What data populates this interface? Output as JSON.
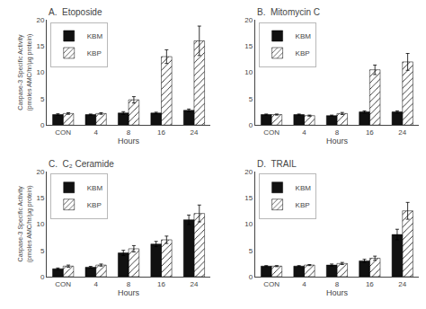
{
  "chart_data": [
    {
      "type": "bar",
      "title": "A.  Etoposide",
      "xlabel": "Hours",
      "ylabel": "Caspase-3 Specific Activity\n(pmoles AMC/hr/μg protein)",
      "categories": [
        "CON",
        "4",
        "8",
        "16",
        "24"
      ],
      "series": [
        {
          "name": "KBM",
          "color": "#111111",
          "values": [
            2.0,
            2.0,
            2.3,
            2.3,
            2.8
          ],
          "errors": [
            0.15,
            0.1,
            0.25,
            0.15,
            0.25
          ]
        },
        {
          "name": "KBP",
          "color": "#bbbbbb",
          "values": [
            2.2,
            2.2,
            4.8,
            13.0,
            16.0
          ],
          "errors": [
            0.15,
            0.15,
            0.6,
            1.3,
            2.8
          ]
        }
      ],
      "ylim": [
        0,
        20
      ],
      "yticks": [
        0,
        5,
        10,
        15,
        20
      ],
      "grid": false,
      "legend": "upper left"
    },
    {
      "type": "bar",
      "title": "B.  Mitomycin C",
      "xlabel": "Hours",
      "categories": [
        "CON",
        "4",
        "8",
        "16",
        "24"
      ],
      "series": [
        {
          "name": "KBM",
          "color": "#111111",
          "values": [
            2.0,
            2.0,
            1.8,
            2.5,
            2.5
          ],
          "errors": [
            0.1,
            0.1,
            0.1,
            0.2,
            0.2
          ]
        },
        {
          "name": "KBP",
          "color": "#bbbbbb",
          "values": [
            2.0,
            1.8,
            2.2,
            10.5,
            12.0
          ],
          "errors": [
            0.1,
            0.1,
            0.2,
            0.9,
            1.6
          ]
        }
      ],
      "ylim": [
        0,
        20
      ],
      "yticks": [
        0,
        5,
        10,
        15,
        20
      ],
      "grid": false,
      "legend": "upper left"
    },
    {
      "type": "bar",
      "title": "C.  C₂ Ceramide",
      "xlabel": "Hours",
      "ylabel": "Caspase-3 Specific Activity\n(pmoles AMC/hr/μg protein)",
      "categories": [
        "CON",
        "4",
        "8",
        "16",
        "24"
      ],
      "series": [
        {
          "name": "KBM",
          "color": "#111111",
          "values": [
            1.5,
            1.8,
            4.5,
            6.2,
            10.8
          ],
          "errors": [
            0.15,
            0.15,
            0.5,
            0.5,
            0.9
          ]
        },
        {
          "name": "KBP",
          "color": "#bbbbbb",
          "values": [
            2.0,
            2.2,
            5.3,
            7.0,
            12.0
          ],
          "errors": [
            0.2,
            0.2,
            0.6,
            0.7,
            1.6
          ]
        }
      ],
      "ylim": [
        0,
        20
      ],
      "yticks": [
        0,
        5,
        10,
        15,
        20
      ],
      "grid": false,
      "legend": "upper left"
    },
    {
      "type": "bar",
      "title": "D.  TRAIL",
      "xlabel": "Hours",
      "categories": [
        "CON",
        "4",
        "8",
        "16",
        "24"
      ],
      "series": [
        {
          "name": "KBM",
          "color": "#111111",
          "values": [
            2.0,
            2.0,
            2.2,
            3.0,
            8.0
          ],
          "errors": [
            0.1,
            0.1,
            0.2,
            0.3,
            1.0
          ]
        },
        {
          "name": "KBP",
          "color": "#bbbbbb",
          "values": [
            2.0,
            2.2,
            2.5,
            3.5,
            12.5
          ],
          "errors": [
            0.1,
            0.1,
            0.2,
            0.4,
            1.6
          ]
        }
      ],
      "ylim": [
        0,
        20
      ],
      "yticks": [
        0,
        5,
        10,
        15,
        20
      ],
      "grid": false,
      "legend": "upper left"
    }
  ]
}
